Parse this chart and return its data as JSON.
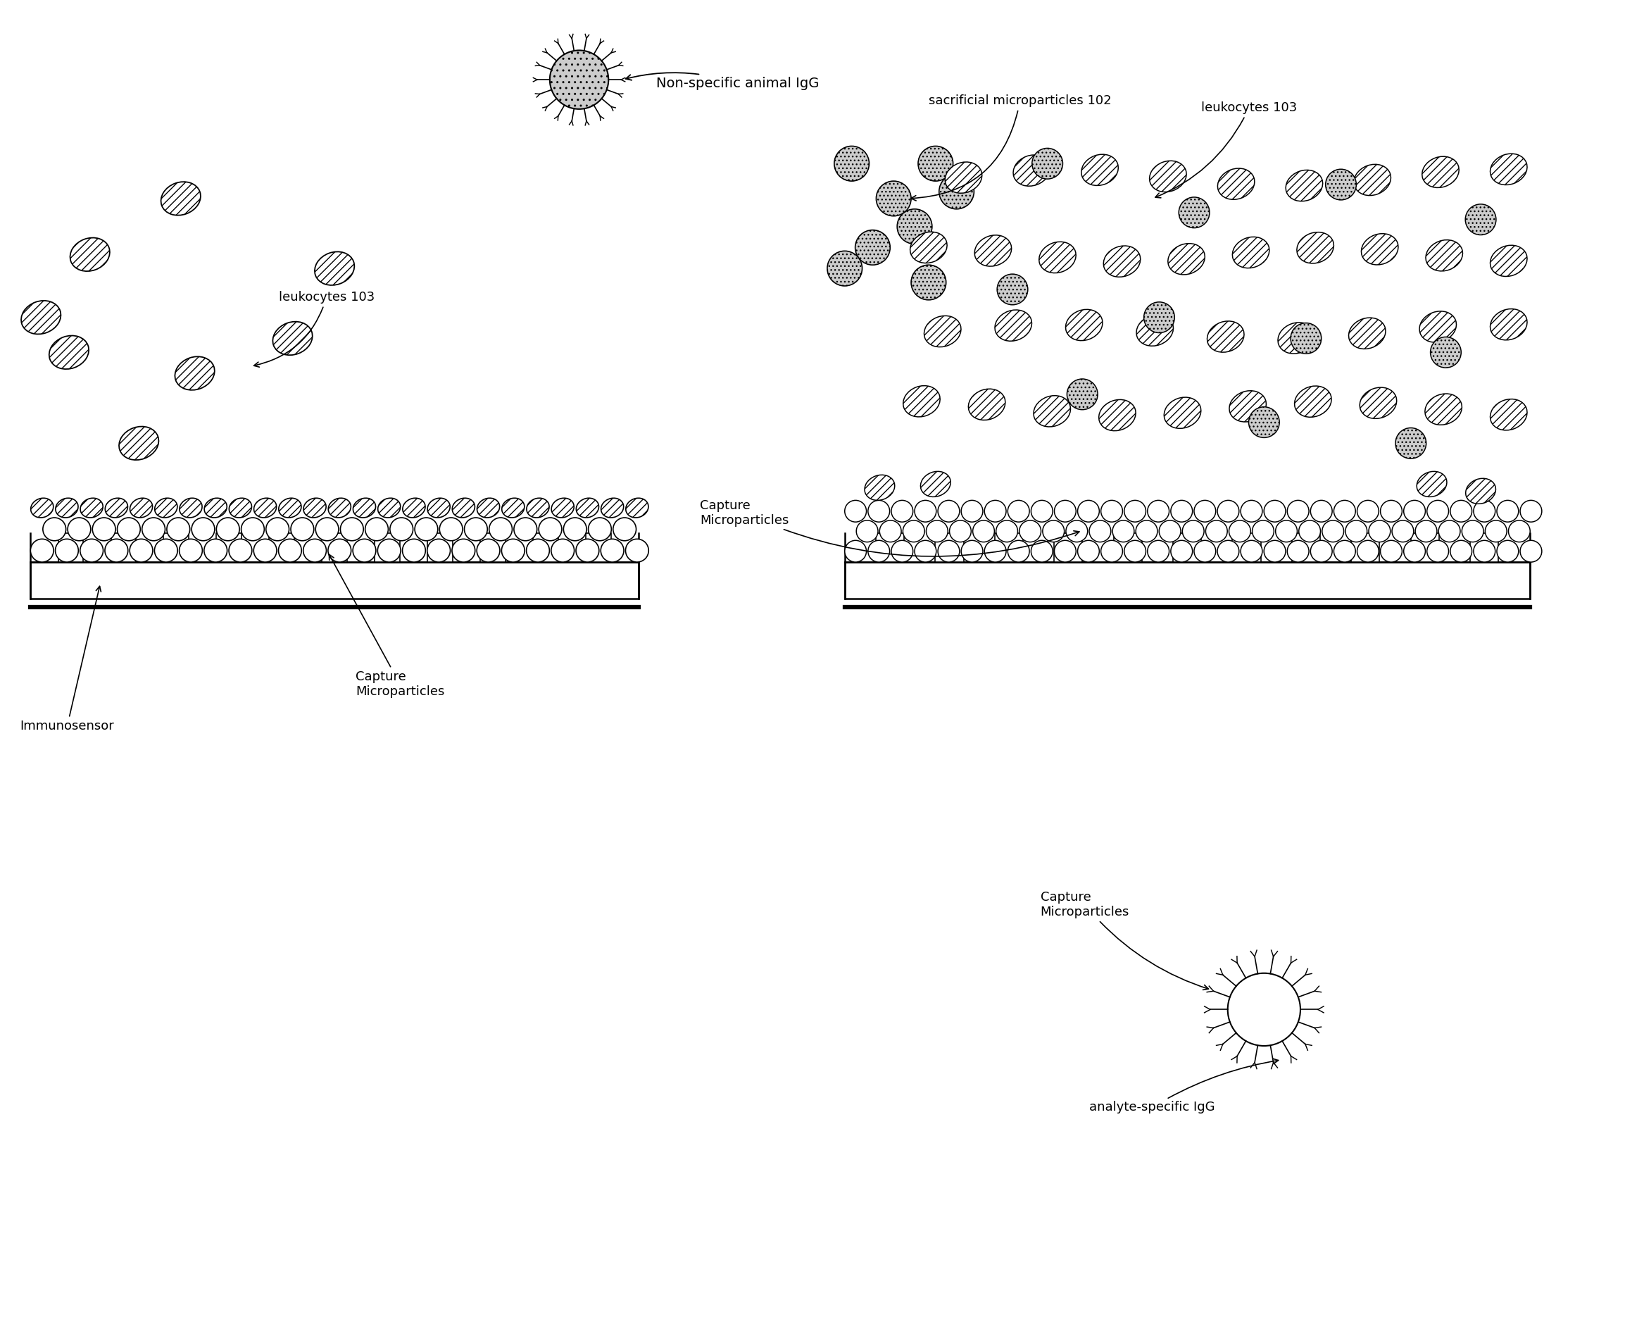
{
  "bg_color": "#ffffff",
  "line_color": "#000000",
  "figure_width": 23.35,
  "figure_height": 18.87,
  "labels": {
    "non_specific_IgG": "Non-specific animal IgG",
    "sacrificial_microparticles": "sacrificial microparticles 102",
    "leukocytes_103_right": "leukocytes 103",
    "leukocytes_103_left": "leukocytes 103",
    "capture_microparticles_left": "Capture\nMicroparticles",
    "capture_microparticles_right": "Capture\nMicroparticles",
    "capture_microparticles_bottom": "Capture\nMicroparticles",
    "immunosensor": "Immunosensor",
    "analyte_specific_IgG": "analyte-specific IgG"
  }
}
